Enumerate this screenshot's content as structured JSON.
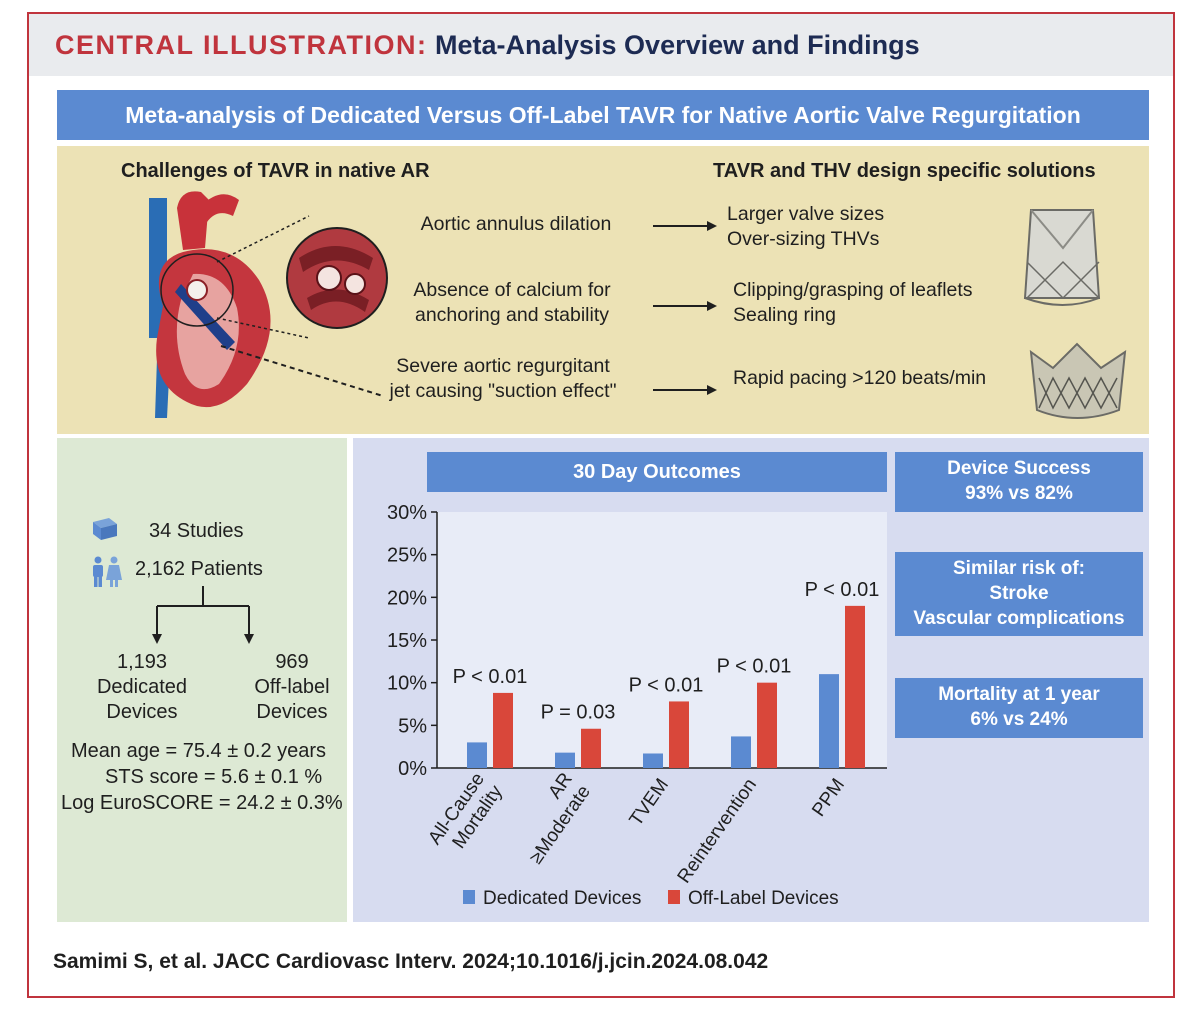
{
  "header": {
    "label_red": "CENTRAL ILLUSTRATION:",
    "label_navy": "Meta-Analysis Overview and Findings"
  },
  "banner": "Meta-analysis of Dedicated Versus Off-Label TAVR for Native Aortic Valve Regurgitation",
  "challenges_panel": {
    "left_heading": "Challenges of TAVR in native AR",
    "right_heading": "TAVR and THV design specific solutions",
    "rows": [
      {
        "challenge": [
          "Aortic annulus dilation"
        ],
        "solution": [
          "Larger valve sizes",
          "Over-sizing THVs"
        ]
      },
      {
        "challenge": [
          "Absence of calcium for",
          "anchoring and stability"
        ],
        "solution": [
          "Clipping/grasping of leaflets",
          "Sealing ring"
        ]
      },
      {
        "challenge": [
          "Severe aortic regurgitant",
          "jet causing \"suction effect\""
        ],
        "solution": [
          "Rapid pacing >120 beats/min"
        ]
      }
    ]
  },
  "stats_panel": {
    "studies": "34 Studies",
    "patients": "2,162 Patients",
    "dedicated": [
      "1,193",
      "Dedicated",
      "Devices"
    ],
    "offlabel": [
      "969",
      "Off-label",
      "Devices"
    ],
    "mean_age": "Mean age = 75.4 ± 0.2 years",
    "sts": "STS score = 5.6 ± 0.1 %",
    "euroscore": "Log EuroSCORE = 24.2 ± 0.3%"
  },
  "side_boxes": [
    [
      "Device Success",
      "93% vs 82%"
    ],
    [
      "Similar risk of:",
      "Stroke",
      "Vascular complications"
    ],
    [
      "Mortality at 1 year",
      "6% vs 24%"
    ]
  ],
  "colors": {
    "dedicated": "#5b8ad1",
    "offlabel": "#d9473a",
    "banner": "#5b8ad1",
    "accent_red": "#c0343d"
  },
  "chart_data": {
    "type": "bar",
    "title": "30 Day Outcomes",
    "categories": [
      [
        "All-Cause",
        "Mortality"
      ],
      [
        "AR",
        "≥Moderate"
      ],
      [
        "TVEM"
      ],
      [
        "Reintervention"
      ],
      [
        "PPM"
      ]
    ],
    "series": [
      {
        "name": "Dedicated Devices",
        "values": [
          3.0,
          1.8,
          1.7,
          3.7,
          11.0
        ]
      },
      {
        "name": "Off-Label Devices",
        "values": [
          8.8,
          4.6,
          7.8,
          10.0,
          19.0
        ]
      }
    ],
    "annotations": [
      "P < 0.01",
      "P = 0.03",
      "P < 0.01",
      "P < 0.01",
      "P < 0.01"
    ],
    "yticks": [
      "0%",
      "5%",
      "10%",
      "15%",
      "20%",
      "25%",
      "30%"
    ],
    "ylim": [
      0,
      30
    ],
    "legend": "bottom"
  },
  "citation": "Samimi S, et al. JACC Cardiovasc Interv. 2024;10.1016/j.jcin.2024.08.042"
}
